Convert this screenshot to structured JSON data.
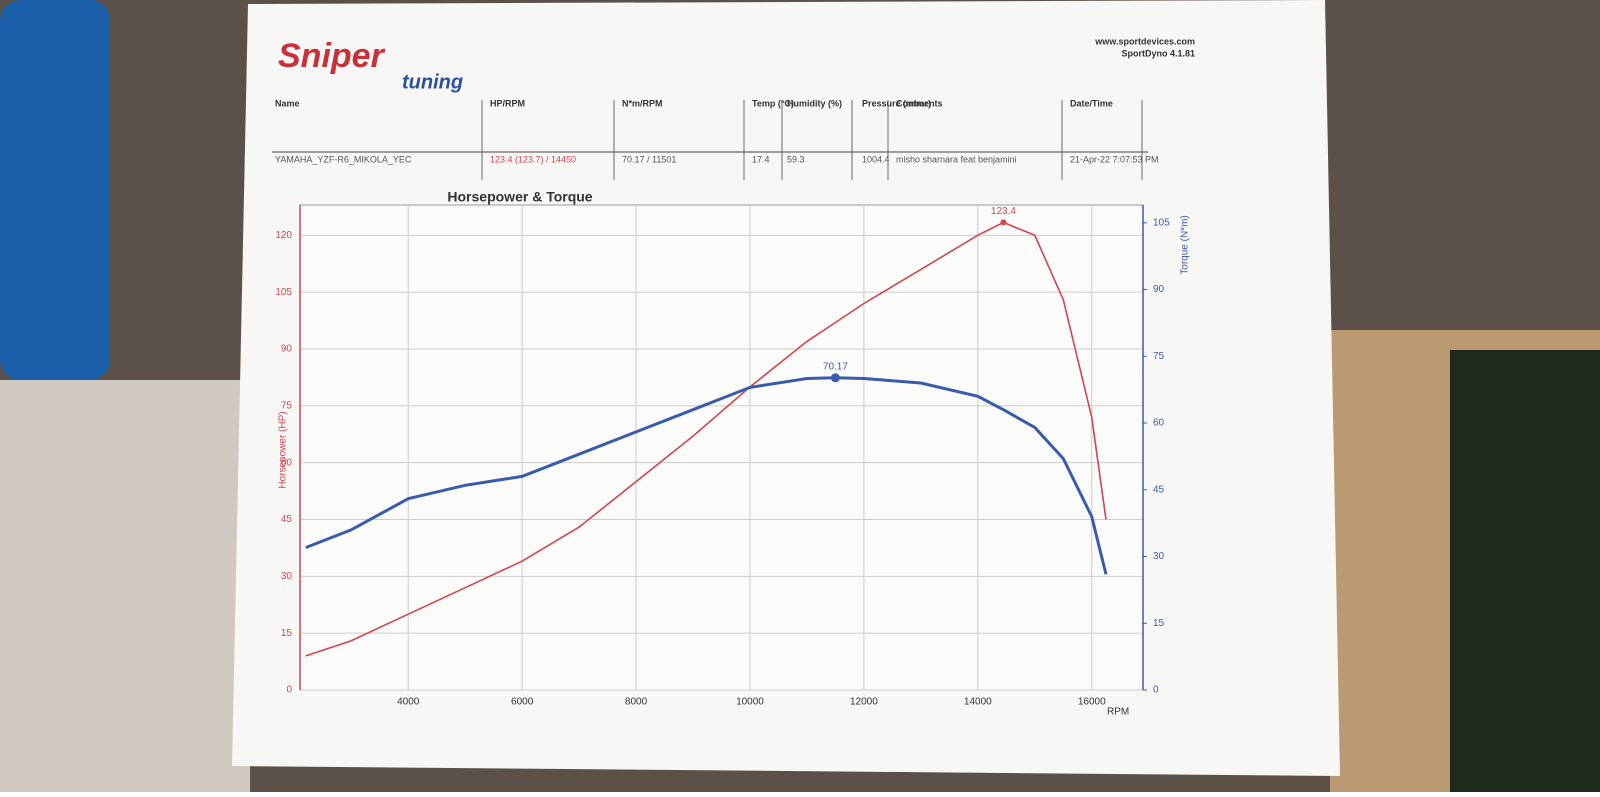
{
  "header": {
    "logo_main": "Sniper",
    "logo_sub": "tuning",
    "site": "www.sportdevices.com",
    "software": "SportDyno 4.1.81"
  },
  "table": {
    "columns": [
      "Name",
      "HP/RPM",
      "N*m/RPM",
      "Temp (°C)",
      "Humidity (%)",
      "Pressure (mbar)",
      "Comments",
      "Date/Time"
    ],
    "rows": [
      [
        "YAMAHA_YZF-R6_MIKOLA_YEC",
        "123.4 (123.7) / 14450",
        "70.17 / 11501",
        "17.4",
        "59.3",
        "1004.4",
        "misho sharnara feat benjamini",
        "21-Apr-22 7:07:53 PM"
      ]
    ]
  },
  "chart_data": {
    "type": "line",
    "title": "Horsepower & Torque",
    "x_label": "RPM",
    "y_label": "Horsepower (HP)",
    "y2_label": "Torque (N*m)",
    "x": [
      2200,
      3000,
      4000,
      5000,
      6000,
      7000,
      8000,
      9000,
      10000,
      11000,
      11500,
      12000,
      13000,
      14000,
      14450,
      15000,
      15500,
      16000,
      16250
    ],
    "series": [
      {
        "name": "Horsepower",
        "color": "#d0454f",
        "values": [
          9,
          13,
          20,
          27,
          34,
          43,
          55,
          67,
          80,
          92,
          97,
          102,
          111,
          120,
          123.4,
          120,
          103,
          72,
          45
        ]
      },
      {
        "name": "Torque",
        "color": "#3a5bab",
        "axis": "y2",
        "values": [
          32,
          36,
          43,
          46,
          48,
          53,
          58,
          63,
          68,
          70,
          70.17,
          70,
          69,
          66,
          63,
          59,
          52,
          39,
          26
        ]
      }
    ],
    "xlim": [
      2100,
      16900
    ],
    "xticks": [
      4000,
      6000,
      8000,
      10000,
      12000,
      14000,
      16000
    ],
    "ylim": [
      0,
      128
    ],
    "yticks": [
      0,
      15,
      30,
      45,
      60,
      75,
      90,
      105,
      120
    ],
    "y2lim": [
      0,
      109
    ],
    "y2ticks": [
      0,
      15,
      30,
      45,
      60,
      75,
      90,
      105
    ],
    "grid": true
  }
}
